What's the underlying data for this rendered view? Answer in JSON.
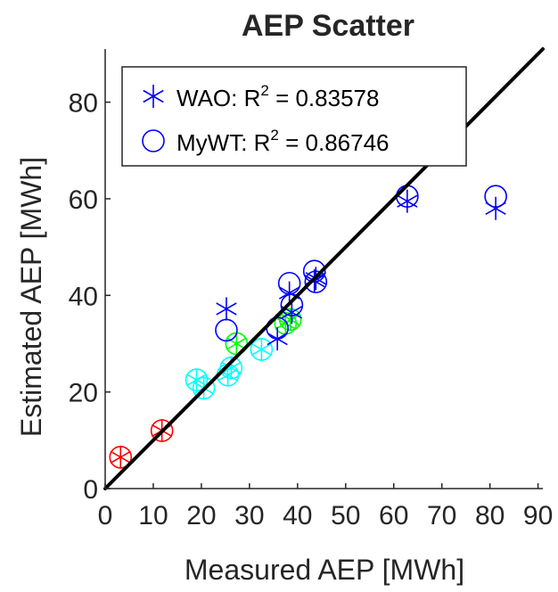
{
  "chart_data": {
    "type": "scatter",
    "title": "AEP Scatter",
    "xlabel": "Measured AEP [MWh]",
    "ylabel": "Estimated AEP [MWh]",
    "xlim": [
      0,
      91
    ],
    "ylim": [
      0,
      91
    ],
    "xticks": [
      0,
      10,
      20,
      30,
      40,
      50,
      60,
      70,
      80,
      90
    ],
    "yticks": [
      0,
      20,
      40,
      60,
      80
    ],
    "grid": false,
    "legend_position": "top-left",
    "reference_line": {
      "from": [
        0,
        0
      ],
      "to": [
        91,
        91
      ],
      "color": "#000000"
    },
    "legend": [
      {
        "marker": "asterisk",
        "color": "#0000ff",
        "prefix": "WAO: R",
        "sup": "2",
        "suffix": " = 0.83578"
      },
      {
        "marker": "circle",
        "color": "#0000ff",
        "prefix": "MyWT: R",
        "sup": "2",
        "suffix": " = 0.86746"
      }
    ],
    "points": [
      {
        "x": 3.2,
        "wao": 6.5,
        "mywt": 6.5,
        "color": "#ff0000"
      },
      {
        "x": 11.8,
        "wao": 12.0,
        "mywt": 12.0,
        "color": "#ff0000"
      },
      {
        "x": 19.0,
        "wao": 22.5,
        "mywt": 22.5,
        "color": "#00ffff"
      },
      {
        "x": 20.5,
        "wao": 20.8,
        "mywt": 20.8,
        "color": "#00ffff"
      },
      {
        "x": 25.5,
        "wao": 23.5,
        "mywt": 23.5,
        "color": "#00ffff"
      },
      {
        "x": 26.2,
        "wao": 25.0,
        "mywt": 25.0,
        "color": "#00ffff"
      },
      {
        "x": 32.5,
        "wao": 28.8,
        "mywt": 28.8,
        "color": "#00ffff"
      },
      {
        "x": 27.3,
        "wao": 30.0,
        "mywt": 30.0,
        "color": "#00ff00"
      },
      {
        "x": 37.5,
        "wao": 34.2,
        "mywt": 34.2,
        "color": "#00ff00"
      },
      {
        "x": 38.5,
        "wao": 35.0,
        "mywt": 35.0,
        "color": "#00ff00"
      },
      {
        "x": 25.2,
        "wao": 37.2,
        "mywt": 32.8,
        "color": "#0000ff"
      },
      {
        "x": 35.8,
        "wao": 31.0,
        "mywt": 33.2,
        "color": "#0000ff"
      },
      {
        "x": 38.3,
        "wao": 40.5,
        "mywt": 42.5,
        "color": "#0000ff"
      },
      {
        "x": 38.8,
        "wao": 36.5,
        "mywt": 38.0,
        "color": "#0000ff"
      },
      {
        "x": 43.5,
        "wao": 43.0,
        "mywt": 45.0,
        "color": "#0000ff"
      },
      {
        "x": 43.8,
        "wao": 43.5,
        "mywt": 42.8,
        "color": "#0000ff"
      },
      {
        "x": 62.8,
        "wao": 59.5,
        "mywt": 60.5,
        "color": "#0000ff"
      },
      {
        "x": 81.2,
        "wao": 58.0,
        "mywt": 60.5,
        "color": "#0000ff"
      }
    ]
  }
}
